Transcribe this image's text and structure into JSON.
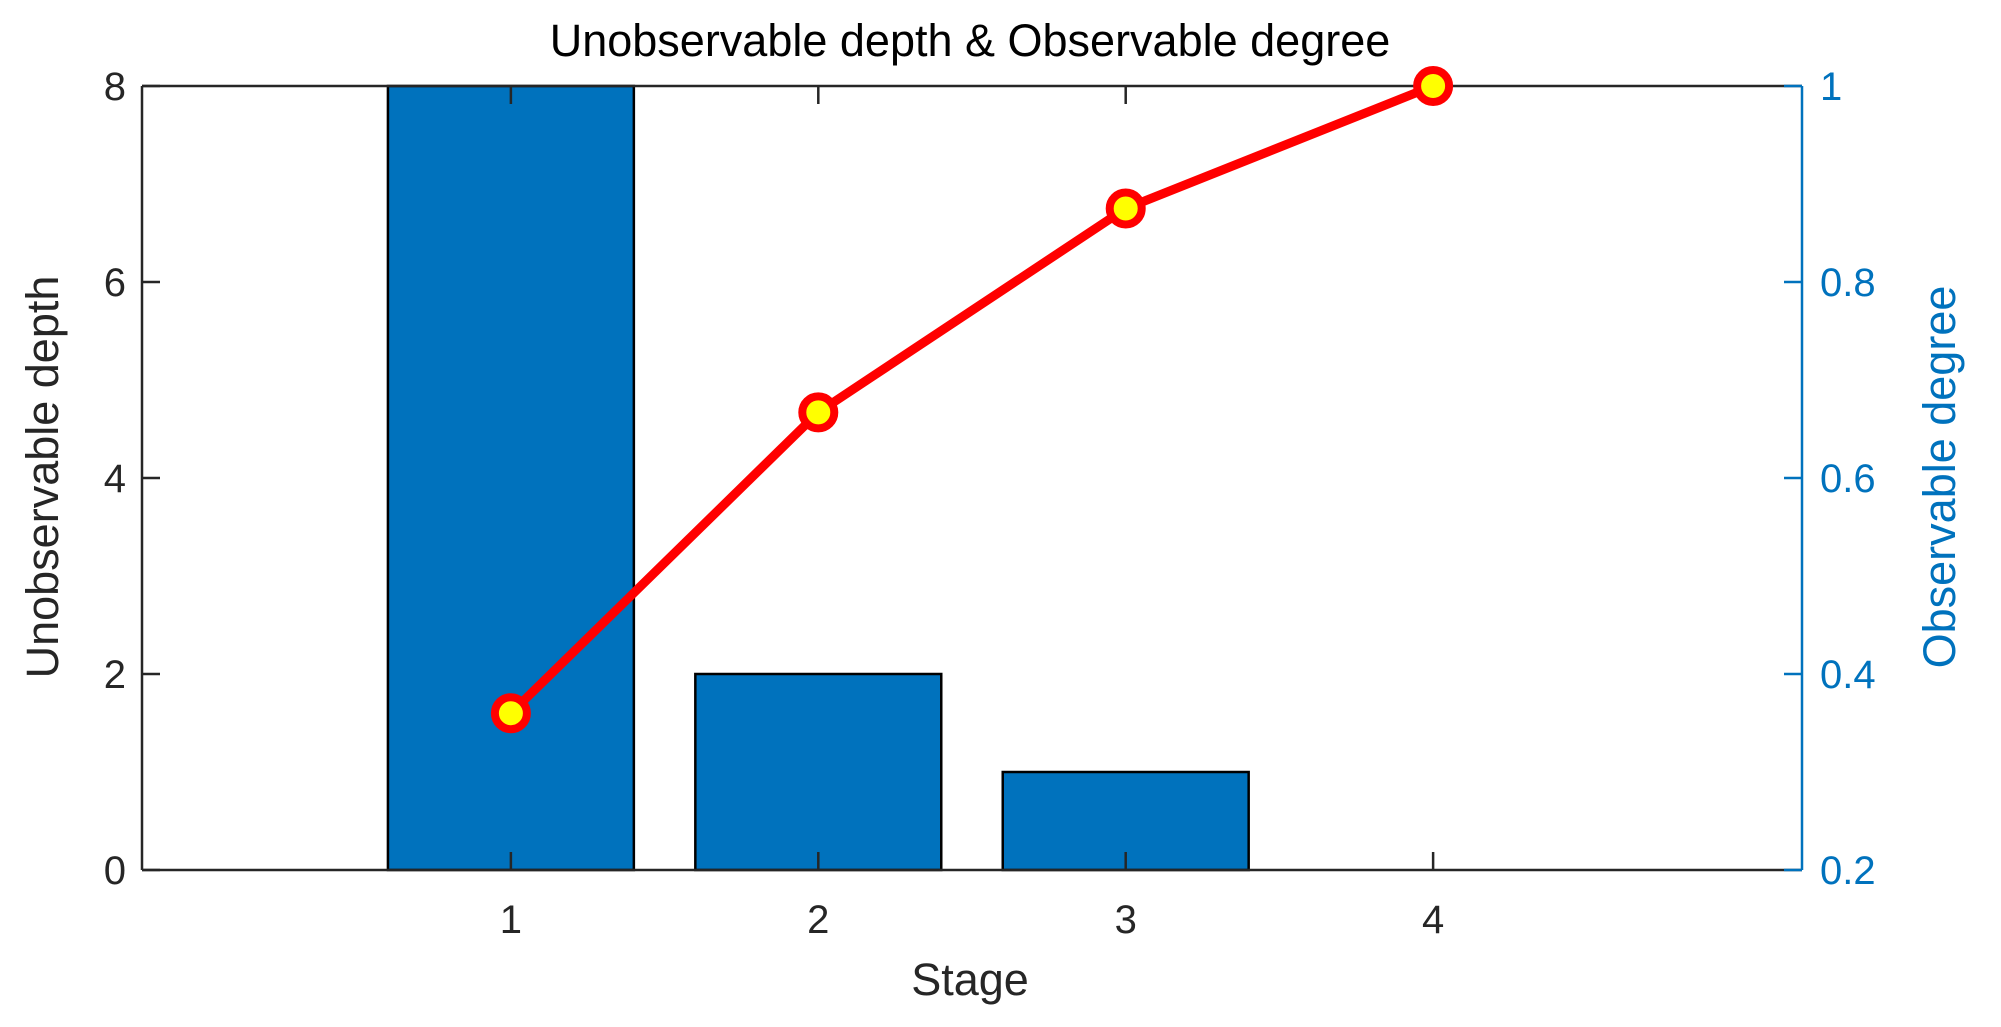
{
  "chart_data": {
    "type": "bar",
    "title": "Unobservable depth & Observable degree",
    "xlabel": "Stage",
    "ylabel_left": "Unobservable depth",
    "ylabel_right": "Observable degree",
    "categories": [
      1,
      2,
      3,
      4
    ],
    "x_ticks": [
      "1",
      "2",
      "3",
      "4"
    ],
    "xlim": [
      -0.2,
      5.2
    ],
    "ylim_left": [
      0,
      8
    ],
    "ylim_right": [
      0.2,
      1
    ],
    "y_ticks_left": [
      "0",
      "2",
      "4",
      "6",
      "8"
    ],
    "y_ticks_right": [
      "0.2",
      "0.4",
      "0.6",
      "0.8",
      "1"
    ],
    "grid": false,
    "legend": "none",
    "series": [
      {
        "type": "bar",
        "axis": "left",
        "values": [
          8,
          2,
          1,
          0
        ],
        "color": "#0072BD"
      },
      {
        "type": "line",
        "axis": "right",
        "values": [
          0.36,
          0.667,
          0.875,
          1.0
        ],
        "color": "#FF0000",
        "marker_fill": "#FFFF00"
      }
    ],
    "right_axis_color": "#0072BD"
  }
}
